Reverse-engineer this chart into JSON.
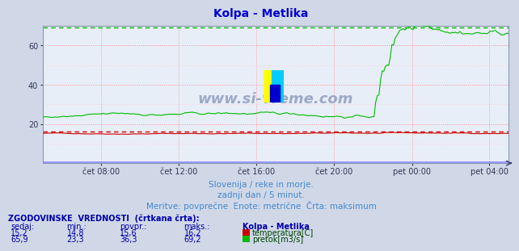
{
  "title": "Kolpa - Metlika",
  "title_color": "#0000cc",
  "bg_color": "#d0d8e8",
  "plot_bg_color": "#e8eef8",
  "subtitle_lines": [
    "Slovenija / reke in morje.",
    "zadnji dan / 5 minut.",
    "Meritve: povprečne  Enote: metrične  Črta: maksimum"
  ],
  "subtitle_color": "#4488cc",
  "xlabel_color": "#0000aa",
  "grid_color_major": "#ff8888",
  "grid_color_minor": "#ffcccc",
  "xtick_labels": [
    "čet 08:00",
    "čet 12:00",
    "čet 16:00",
    "čet 20:00",
    "pet 00:00",
    "pet 04:00"
  ],
  "xtick_positions": [
    0.125,
    0.292,
    0.458,
    0.625,
    0.792,
    0.958
  ],
  "ylim": [
    0,
    70
  ],
  "yticks": [
    20,
    40,
    60
  ],
  "temp_color": "#cc0000",
  "flow_color": "#00bb00",
  "baseline_color": "#8888ff",
  "temp_dashed_value": 16.2,
  "flow_dashed_value": 69.2,
  "temp_current": 15.2,
  "temp_min": 14.8,
  "temp_avg": 15.6,
  "temp_max": 16.2,
  "flow_current": 65.9,
  "flow_min": 23.3,
  "flow_avg": 36.3,
  "flow_max": 69.2,
  "watermark": "www.si-vreme.com",
  "watermark_color": "#8899bb",
  "table_header_color": "#0000aa",
  "table_value_color": "#0000aa",
  "table_label_color": "#004400",
  "n_points": 288
}
